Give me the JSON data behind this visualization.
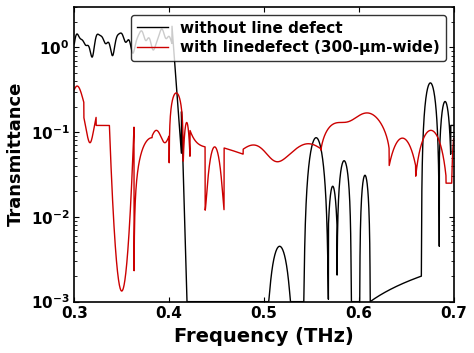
{
  "xlabel": "Frequency (THz)",
  "ylabel": "Transmittance",
  "xlim": [
    0.3,
    0.7
  ],
  "ylim": [
    0.001,
    3
  ],
  "legend_black": "without line defect",
  "legend_red": "with linedefect (300-μm-wide)",
  "color_black": "#000000",
  "color_red": "#cc0000",
  "linewidth": 1.0,
  "xlabel_fontsize": 14,
  "ylabel_fontsize": 13,
  "tick_fontsize": 11,
  "legend_fontsize": 11
}
